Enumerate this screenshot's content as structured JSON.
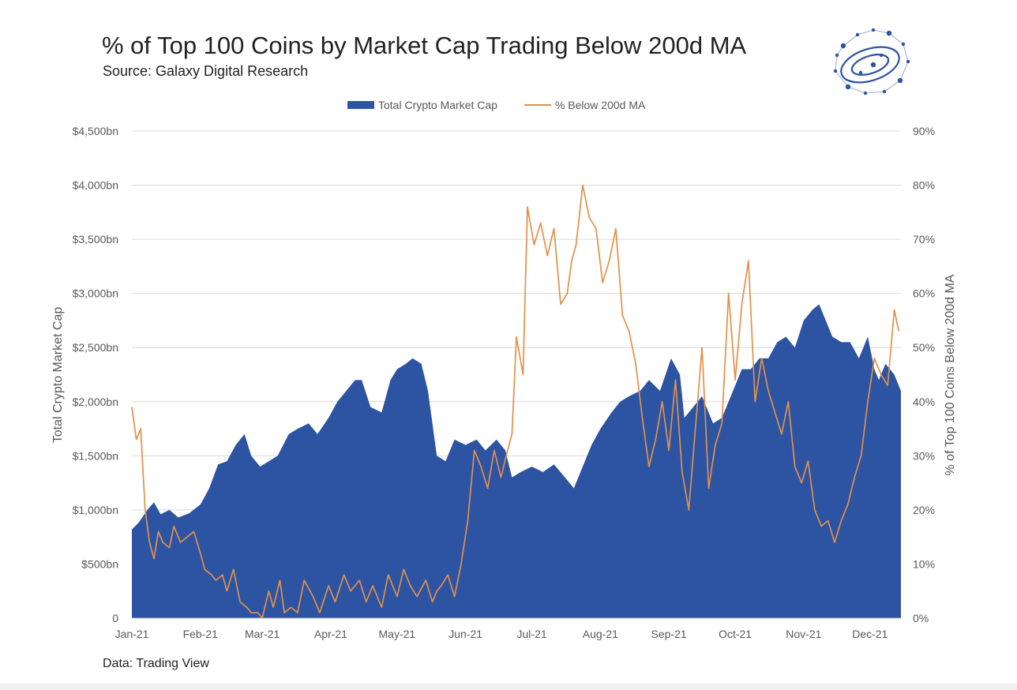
{
  "header": {
    "title": "% of Top 100 Coins by Market Cap Trading Below 200d MA",
    "subtitle": "Source: Galaxy Digital Research"
  },
  "footer": {
    "note": "Data: Trading View"
  },
  "colors": {
    "area": "#2d53a3",
    "line": "#e0914b",
    "grid": "#d9d9d9",
    "logo": "#2d53a3"
  },
  "logo": {
    "icon": "galaxy-network-logo-icon"
  },
  "chart_data": {
    "type": "area",
    "title": "% of Top 100 Coins by Market Cap Trading Below 200d MA",
    "ylabel": "Total Crypto Market Cap",
    "y2label": "% of Top 100 Coins Below 200d MA",
    "ylim": [
      0,
      4500
    ],
    "y2lim": [
      0,
      90
    ],
    "xlim": [
      "2021-01-01",
      "2021-12-15"
    ],
    "grid": true,
    "legend_position": "top",
    "x_ticks": [
      "Jan-21",
      "Feb-21",
      "Mar-21",
      "Apr-21",
      "May-21",
      "Jun-21",
      "Jul-21",
      "Aug-21",
      "Sep-21",
      "Oct-21",
      "Nov-21",
      "Dec-21"
    ],
    "y_ticks": [
      "0",
      "$500bn",
      "$1,000bn",
      "$1,500bn",
      "$2,000bn",
      "$2,500bn",
      "$3,000bn",
      "$3,500bn",
      "$4,000bn",
      "$4,500bn"
    ],
    "y2_ticks": [
      "0%",
      "10%",
      "20%",
      "30%",
      "40%",
      "50%",
      "60%",
      "70%",
      "80%",
      "90%"
    ],
    "series": [
      {
        "name": "Total Crypto Market Cap",
        "type": "area",
        "axis": "left",
        "x": [
          "2021-01-01",
          "2021-01-04",
          "2021-01-08",
          "2021-01-11",
          "2021-01-14",
          "2021-01-18",
          "2021-01-22",
          "2021-01-27",
          "2021-02-01",
          "2021-02-05",
          "2021-02-09",
          "2021-02-13",
          "2021-02-17",
          "2021-02-21",
          "2021-02-24",
          "2021-02-28",
          "2021-03-04",
          "2021-03-08",
          "2021-03-13",
          "2021-03-17",
          "2021-03-22",
          "2021-03-26",
          "2021-03-31",
          "2021-04-04",
          "2021-04-08",
          "2021-04-12",
          "2021-04-15",
          "2021-04-19",
          "2021-04-24",
          "2021-04-28",
          "2021-05-01",
          "2021-05-05",
          "2021-05-08",
          "2021-05-12",
          "2021-05-15",
          "2021-05-19",
          "2021-05-23",
          "2021-05-27",
          "2021-06-01",
          "2021-06-06",
          "2021-06-10",
          "2021-06-15",
          "2021-06-19",
          "2021-06-22",
          "2021-06-26",
          "2021-07-01",
          "2021-07-06",
          "2021-07-11",
          "2021-07-16",
          "2021-07-20",
          "2021-07-24",
          "2021-07-28",
          "2021-08-01",
          "2021-08-06",
          "2021-08-10",
          "2021-08-14",
          "2021-08-19",
          "2021-08-23",
          "2021-08-28",
          "2021-09-02",
          "2021-09-06",
          "2021-09-08",
          "2021-09-12",
          "2021-09-16",
          "2021-09-21",
          "2021-09-25",
          "2021-09-30",
          "2021-10-04",
          "2021-10-08",
          "2021-10-12",
          "2021-10-16",
          "2021-10-20",
          "2021-10-24",
          "2021-10-28",
          "2021-11-01",
          "2021-11-05",
          "2021-11-08",
          "2021-11-10",
          "2021-11-14",
          "2021-11-18",
          "2021-11-22",
          "2021-11-26",
          "2021-11-30",
          "2021-12-03",
          "2021-12-05",
          "2021-12-08",
          "2021-12-12",
          "2021-12-15"
        ],
        "values": [
          820,
          880,
          1000,
          1070,
          960,
          1000,
          930,
          970,
          1050,
          1200,
          1420,
          1450,
          1600,
          1700,
          1500,
          1400,
          1450,
          1500,
          1700,
          1750,
          1800,
          1700,
          1850,
          2000,
          2100,
          2200,
          2200,
          1950,
          1900,
          2200,
          2300,
          2350,
          2400,
          2350,
          2100,
          1500,
          1450,
          1650,
          1600,
          1650,
          1550,
          1650,
          1550,
          1300,
          1350,
          1400,
          1350,
          1420,
          1300,
          1200,
          1400,
          1600,
          1750,
          1900,
          2000,
          2050,
          2100,
          2200,
          2100,
          2400,
          2250,
          1850,
          1950,
          2050,
          1800,
          1850,
          2100,
          2300,
          2300,
          2400,
          2400,
          2550,
          2600,
          2500,
          2750,
          2850,
          2900,
          2800,
          2600,
          2550,
          2550,
          2400,
          2600,
          2300,
          2200,
          2350,
          2250,
          2100
        ]
      },
      {
        "name": "% Below 200d MA",
        "type": "line",
        "axis": "right",
        "x": [
          "2021-01-01",
          "2021-01-03",
          "2021-01-05",
          "2021-01-07",
          "2021-01-09",
          "2021-01-11",
          "2021-01-13",
          "2021-01-15",
          "2021-01-18",
          "2021-01-20",
          "2021-01-23",
          "2021-01-26",
          "2021-01-29",
          "2021-02-01",
          "2021-02-03",
          "2021-02-06",
          "2021-02-08",
          "2021-02-11",
          "2021-02-13",
          "2021-02-16",
          "2021-02-19",
          "2021-02-22",
          "2021-02-24",
          "2021-02-27",
          "2021-03-01",
          "2021-03-04",
          "2021-03-06",
          "2021-03-09",
          "2021-03-11",
          "2021-03-14",
          "2021-03-17",
          "2021-03-20",
          "2021-03-24",
          "2021-03-27",
          "2021-03-31",
          "2021-04-03",
          "2021-04-07",
          "2021-04-10",
          "2021-04-14",
          "2021-04-17",
          "2021-04-20",
          "2021-04-24",
          "2021-04-27",
          "2021-05-01",
          "2021-05-04",
          "2021-05-07",
          "2021-05-10",
          "2021-05-14",
          "2021-05-17",
          "2021-05-19",
          "2021-05-21",
          "2021-05-24",
          "2021-05-27",
          "2021-05-30",
          "2021-06-02",
          "2021-06-05",
          "2021-06-08",
          "2021-06-11",
          "2021-06-14",
          "2021-06-17",
          "2021-06-20",
          "2021-06-22",
          "2021-06-24",
          "2021-06-27",
          "2021-06-29",
          "2021-07-02",
          "2021-07-05",
          "2021-07-08",
          "2021-07-11",
          "2021-07-14",
          "2021-07-17",
          "2021-07-19",
          "2021-07-21",
          "2021-07-24",
          "2021-07-27",
          "2021-07-30",
          "2021-08-02",
          "2021-08-05",
          "2021-08-08",
          "2021-08-11",
          "2021-08-14",
          "2021-08-17",
          "2021-08-20",
          "2021-08-23",
          "2021-08-26",
          "2021-08-29",
          "2021-09-01",
          "2021-09-04",
          "2021-09-07",
          "2021-09-10",
          "2021-09-13",
          "2021-09-16",
          "2021-09-19",
          "2021-09-22",
          "2021-09-25",
          "2021-09-28",
          "2021-10-01",
          "2021-10-04",
          "2021-10-07",
          "2021-10-10",
          "2021-10-13",
          "2021-10-16",
          "2021-10-19",
          "2021-10-22",
          "2021-10-25",
          "2021-10-28",
          "2021-10-31",
          "2021-11-03",
          "2021-11-06",
          "2021-11-09",
          "2021-11-12",
          "2021-11-15",
          "2021-11-18",
          "2021-11-21",
          "2021-11-24",
          "2021-11-27",
          "2021-11-30",
          "2021-12-03",
          "2021-12-06",
          "2021-12-09",
          "2021-12-12",
          "2021-12-14"
        ],
        "values": [
          39,
          33,
          35,
          20,
          14,
          11,
          16,
          14,
          13,
          17,
          14,
          15,
          16,
          12,
          9,
          8,
          7,
          8,
          5,
          9,
          3,
          2,
          1,
          1,
          0,
          5,
          2,
          7,
          1,
          2,
          1,
          7,
          4,
          1,
          6,
          3,
          8,
          5,
          7,
          3,
          6,
          2,
          8,
          4,
          9,
          6,
          4,
          7,
          3,
          5,
          6,
          8,
          4,
          10,
          18,
          31,
          28,
          24,
          31,
          26,
          31,
          34,
          52,
          45,
          76,
          69,
          73,
          67,
          72,
          58,
          60,
          66,
          69,
          80,
          74,
          72,
          62,
          66,
          72,
          56,
          53,
          47,
          37,
          28,
          33,
          40,
          31,
          44,
          27,
          20,
          35,
          50,
          24,
          32,
          36,
          60,
          44,
          58,
          66,
          40,
          48,
          42,
          38,
          34,
          40,
          28,
          25,
          29,
          20,
          17,
          18,
          14,
          18,
          21,
          26,
          30,
          40,
          48,
          45,
          43,
          57,
          53
        ]
      }
    ]
  }
}
